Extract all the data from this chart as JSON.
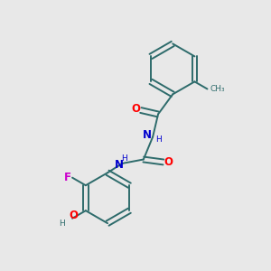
{
  "bg_color": "#e8e8e8",
  "bond_color": "#2d6b6b",
  "atom_colors": {
    "O": "#ff0000",
    "N": "#0000cd",
    "F": "#cc00cc",
    "C": "#2d6b6b",
    "H": "#2d6b6b"
  },
  "font_size_atom": 8.5,
  "font_size_small": 7.0
}
